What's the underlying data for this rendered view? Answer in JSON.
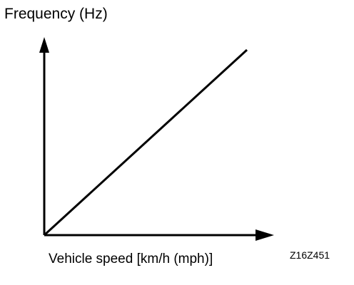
{
  "chart_data": {
    "type": "line",
    "title": "",
    "ylabel": "Frequency (Hz)",
    "xlabel": "Vehicle speed [km/h (mph)]",
    "figure_code": "Z16Z451",
    "axis_ticks": "none",
    "grid": false,
    "legend": "none",
    "series": [
      {
        "x": [
          0,
          1
        ],
        "y": [
          0,
          1
        ]
      }
    ]
  }
}
